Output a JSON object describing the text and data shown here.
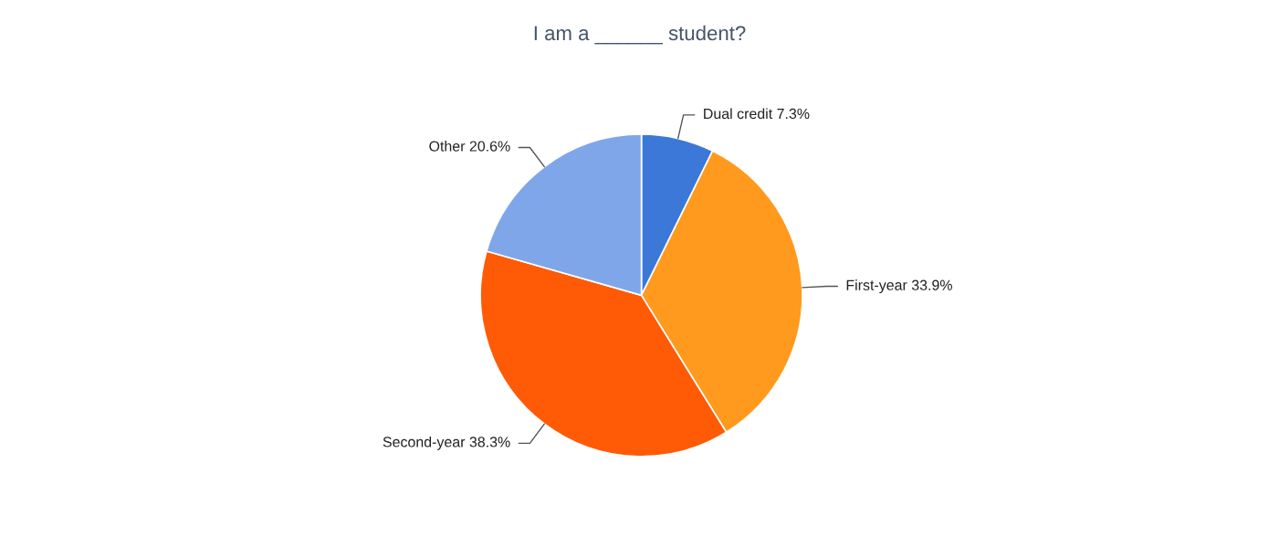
{
  "chart_data": {
    "type": "pie",
    "title": "I am a ______ student?",
    "categories": [
      "Dual credit",
      "First-year",
      "Second-year",
      "Other"
    ],
    "values": [
      7.3,
      33.9,
      38.3,
      20.6
    ],
    "value_labels": [
      "7.3%",
      "33.9%",
      "38.3%",
      "20.6%"
    ],
    "colors": [
      "#3c78d8",
      "#ff9a1f",
      "#ff5a05",
      "#7fa6e8"
    ],
    "legend": false
  }
}
